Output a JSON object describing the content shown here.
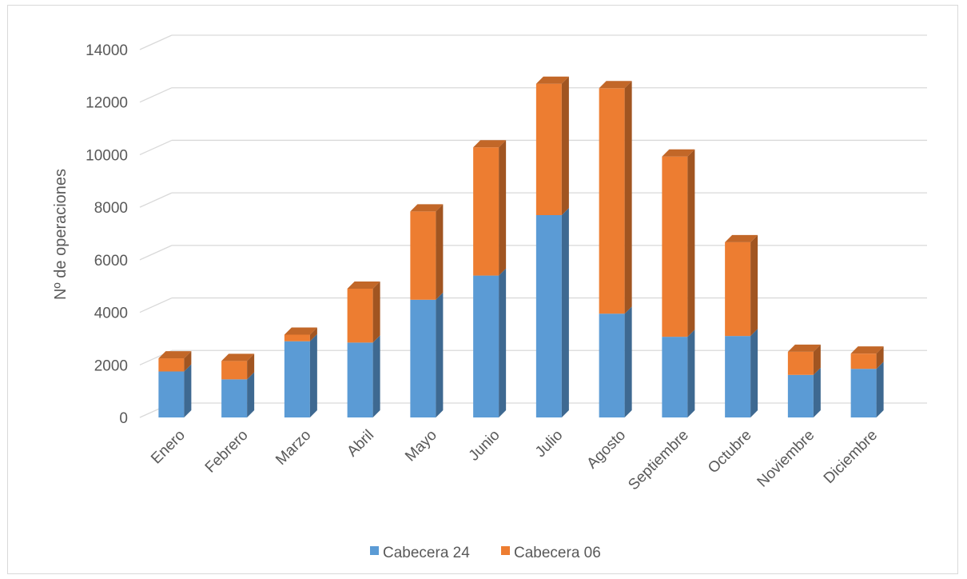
{
  "chart_data": {
    "type": "bar",
    "stacked": true,
    "style": "3d-column",
    "title": "",
    "xlabel": "",
    "ylabel": "Nº de operaciones",
    "ylim": [
      0,
      14000
    ],
    "yticks": [
      0,
      2000,
      4000,
      6000,
      8000,
      10000,
      12000,
      14000
    ],
    "grid": true,
    "legend_position": "bottom",
    "categories": [
      "Enero",
      "Febrero",
      "Marzo",
      "Abril",
      "Mayo",
      "Junio",
      "Julio",
      "Agosto",
      "Septiembre",
      "Octubre",
      "Noviembre",
      "Diciembre"
    ],
    "series": [
      {
        "name": "Cabecera 24",
        "color": "#5b9bd5",
        "values": [
          1750,
          1450,
          2900,
          2850,
          4480,
          5400,
          7700,
          3950,
          3070,
          3100,
          1620,
          1850
        ]
      },
      {
        "name": "Cabecera 06",
        "color": "#ed7d31",
        "values": [
          500,
          700,
          250,
          2050,
          3360,
          4880,
          5000,
          8580,
          6860,
          3570,
          880,
          580
        ]
      }
    ]
  }
}
